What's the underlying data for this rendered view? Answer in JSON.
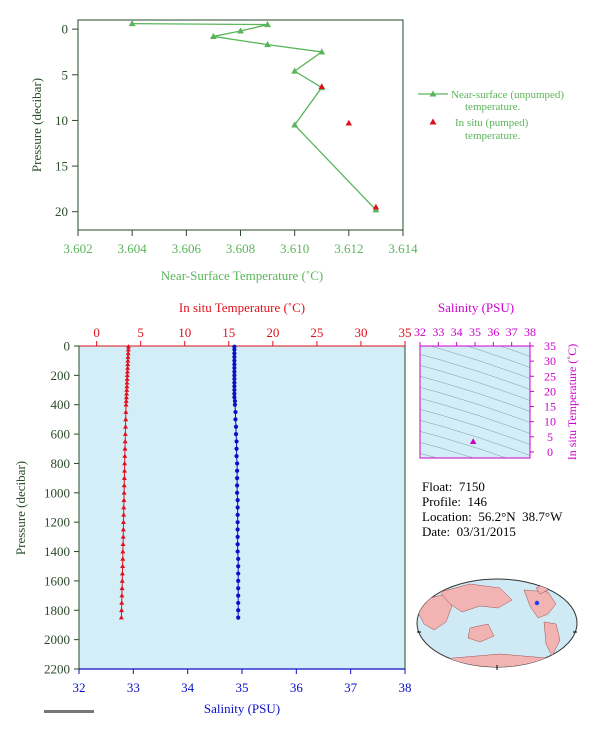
{
  "colors": {
    "near_surface": "#5ab55a",
    "in_situ_temp": "#e0101e",
    "salinity": "#0a10c8",
    "ts_axis": "#cc00cc",
    "dark_axis": "#2a4a2a",
    "panel_bg": "#d4eef7"
  },
  "info": {
    "float": "Float:  7150",
    "profile": "Profile:  146",
    "location": "Location:  56.2°N  38.7°W",
    "date": "Date:  03/31/2015"
  },
  "chart_data": [
    {
      "type": "line",
      "id": "near-surface-chart",
      "xlabel": "Near-Surface Temperature (˚C)",
      "ylabel": "Pressure (decibar)",
      "xlim": [
        3.602,
        3.614
      ],
      "ylim": [
        -1,
        22
      ],
      "y_inverted": true,
      "xticks": [
        "3.602",
        "3.604",
        "3.606",
        "3.608",
        "3.610",
        "3.612",
        "3.614"
      ],
      "yticks": [
        "0",
        "5",
        "10",
        "15",
        "20"
      ],
      "legend_position": "right",
      "series": [
        {
          "name": "Near-surface (unpumped) temperature.",
          "legend_lines": [
            "Near-surface (unpumped)",
            "temperature."
          ],
          "marker": "triangle",
          "x": [
            3.604,
            3.609,
            3.608,
            3.607,
            3.609,
            3.611,
            3.61,
            3.611,
            3.61,
            3.613
          ],
          "y": [
            -0.6,
            -0.5,
            0.2,
            0.8,
            1.7,
            2.5,
            4.6,
            6.4,
            10.5,
            19.8
          ]
        },
        {
          "name": "In situ (pumped) temperature.",
          "legend_lines": [
            "In situ (pumped)",
            "temperature."
          ],
          "marker": "triangle",
          "x": [
            3.611,
            3.612,
            3.613
          ],
          "y": [
            6.3,
            10.3,
            19.5
          ]
        }
      ]
    },
    {
      "type": "scatter",
      "id": "profile-chart",
      "ylabel": "Pressure (decibar)",
      "ylim": [
        0,
        2200
      ],
      "y_inverted": true,
      "yticks": [
        "0",
        "200",
        "400",
        "600",
        "800",
        "1000",
        "1200",
        "1400",
        "1600",
        "1800",
        "2000",
        "2200"
      ],
      "temp_axis": {
        "label": "In situ Temperature (˚C)",
        "lim": [
          -2,
          35
        ],
        "ticks": [
          "0",
          "5",
          "10",
          "15",
          "20",
          "25",
          "30",
          "35"
        ]
      },
      "sal_axis": {
        "label": "Salinity (PSU)",
        "lim": [
          32,
          38
        ],
        "ticks": [
          "32",
          "33",
          "34",
          "35",
          "36",
          "37",
          "38"
        ]
      },
      "series": [
        {
          "name": "temperature",
          "marker": "triangle",
          "pressure": [
            5,
            25,
            50,
            75,
            100,
            125,
            150,
            175,
            200,
            225,
            250,
            275,
            300,
            325,
            350,
            375,
            400,
            450,
            500,
            550,
            600,
            650,
            700,
            750,
            800,
            850,
            900,
            950,
            1000,
            1050,
            1100,
            1150,
            1200,
            1250,
            1300,
            1350,
            1400,
            1450,
            1500,
            1550,
            1600,
            1650,
            1700,
            1750,
            1800,
            1850
          ],
          "value": [
            3.61,
            3.6,
            3.58,
            3.56,
            3.55,
            3.53,
            3.52,
            3.5,
            3.48,
            3.47,
            3.45,
            3.44,
            3.42,
            3.4,
            3.38,
            3.36,
            3.34,
            3.32,
            3.3,
            3.28,
            3.26,
            3.24,
            3.22,
            3.2,
            3.18,
            3.17,
            3.15,
            3.13,
            3.12,
            3.1,
            3.08,
            3.07,
            3.05,
            3.04,
            3.02,
            3.0,
            2.98,
            2.97,
            2.95,
            2.93,
            2.91,
            2.89,
            2.87,
            2.85,
            2.83,
            2.81
          ]
        },
        {
          "name": "salinity",
          "marker": "circle",
          "pressure": [
            5,
            25,
            50,
            75,
            100,
            125,
            150,
            175,
            200,
            225,
            250,
            275,
            300,
            325,
            350,
            375,
            400,
            450,
            500,
            550,
            600,
            650,
            700,
            750,
            800,
            850,
            900,
            950,
            1000,
            1050,
            1100,
            1150,
            1200,
            1250,
            1300,
            1350,
            1400,
            1450,
            1500,
            1550,
            1600,
            1650,
            1700,
            1750,
            1800,
            1850
          ],
          "value": [
            34.86,
            34.86,
            34.86,
            34.86,
            34.86,
            34.86,
            34.86,
            34.86,
            34.86,
            34.86,
            34.86,
            34.86,
            34.86,
            34.86,
            34.86,
            34.87,
            34.87,
            34.88,
            34.88,
            34.89,
            34.89,
            34.9,
            34.9,
            34.9,
            34.91,
            34.91,
            34.91,
            34.91,
            34.91,
            34.92,
            34.92,
            34.92,
            34.92,
            34.92,
            34.92,
            34.92,
            34.92,
            34.93,
            34.93,
            34.93,
            34.93,
            34.93,
            34.93,
            34.93,
            34.93,
            34.93
          ]
        }
      ]
    },
    {
      "type": "scatter",
      "id": "ts-chart",
      "xlabel": "Salinity (PSU)",
      "ylabel": "In situ Temperature (˚C)",
      "xlim": [
        32,
        38
      ],
      "ylim": [
        -2,
        35
      ],
      "xticks": [
        "32",
        "33",
        "34",
        "35",
        "36",
        "37",
        "38"
      ],
      "yticks": [
        "0",
        "5",
        "10",
        "15",
        "20",
        "25",
        "30",
        "35"
      ],
      "points": [
        {
          "x": 34.9,
          "y": 3.4
        }
      ]
    }
  ]
}
